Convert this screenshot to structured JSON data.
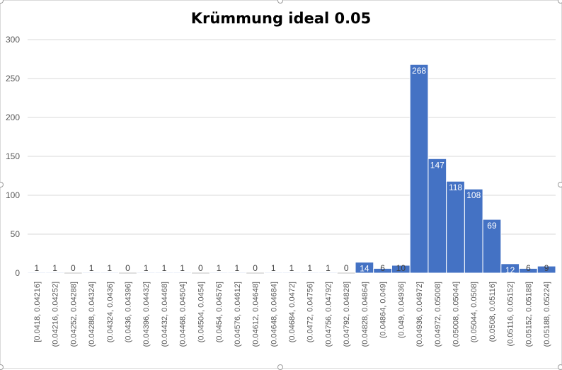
{
  "chart_data": {
    "type": "bar",
    "title": "Krümmung ideal 0.05",
    "xlabel": "",
    "ylabel": "",
    "ylim": [
      0,
      300
    ],
    "yticks": [
      0,
      50,
      100,
      150,
      200,
      250,
      300
    ],
    "grid": true,
    "legend": "none",
    "bar_color": "#4472c4",
    "categories": [
      "[0.0418, 0.04216]",
      "(0.04216, 0.04252]",
      "(0.04252, 0.04288]",
      "(0.04288, 0.04324]",
      "(0.04324, 0.0436]",
      "(0.0436, 0.04396]",
      "(0.04396, 0.04432]",
      "(0.04432, 0.04468]",
      "(0.04468, 0.04504]",
      "(0.04504, 0.0454]",
      "(0.0454, 0.04576]",
      "(0.04576, 0.04612]",
      "(0.04612, 0.04648]",
      "(0.04648, 0.04684]",
      "(0.04684, 0.0472]",
      "(0.0472, 0.04756]",
      "(0.04756, 0.04792]",
      "(0.04792, 0.04828]",
      "(0.04828, 0.04864]",
      "(0.04864, 0.049]",
      "(0.049, 0.04936]",
      "(0.04936, 0.04972]",
      "(0.04972, 0.05008]",
      "(0.05008, 0.05044]",
      "(0.05044, 0.0508]",
      "(0.0508, 0.05116]",
      "(0.05116, 0.05152]",
      "(0.05152, 0.05188]",
      "(0.05188, 0.05224]"
    ],
    "values": [
      1,
      1,
      0,
      1,
      1,
      0,
      1,
      1,
      1,
      0,
      1,
      1,
      0,
      1,
      1,
      1,
      1,
      0,
      14,
      6,
      10,
      268,
      147,
      118,
      108,
      69,
      12,
      6,
      9
    ]
  }
}
